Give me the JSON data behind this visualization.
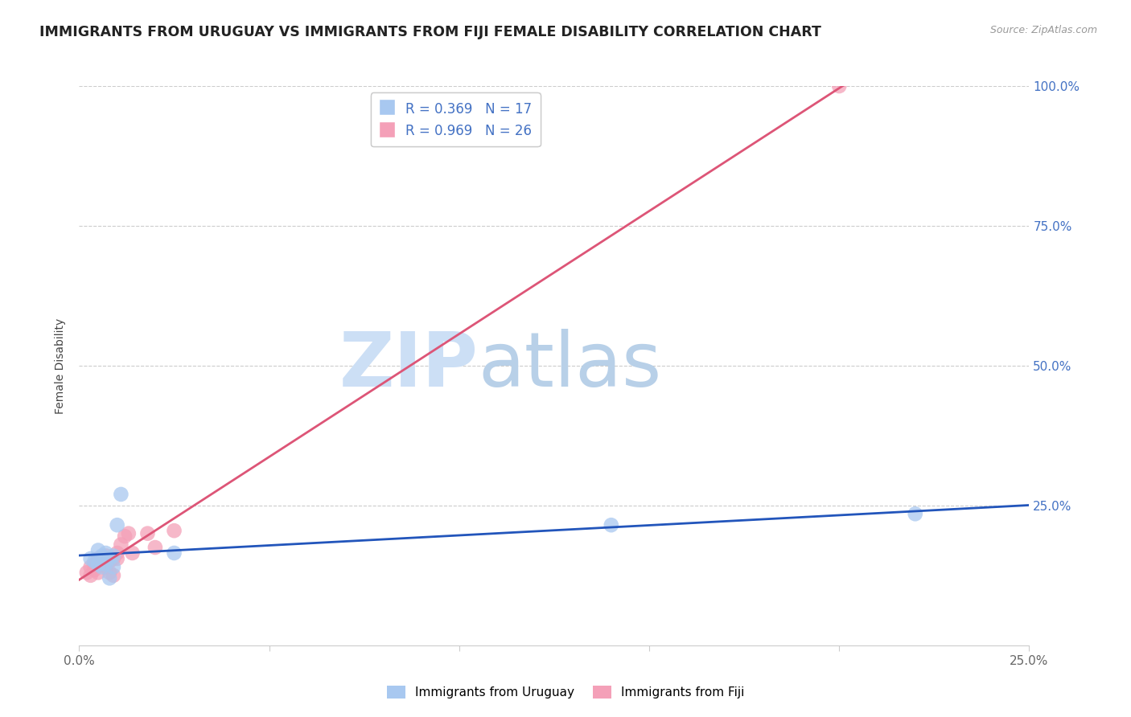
{
  "title": "IMMIGRANTS FROM URUGUAY VS IMMIGRANTS FROM FIJI FEMALE DISABILITY CORRELATION CHART",
  "source": "Source: ZipAtlas.com",
  "ylabel": "Female Disability",
  "xlim": [
    0,
    0.25
  ],
  "ylim": [
    0,
    1.0
  ],
  "uruguay_R": 0.369,
  "uruguay_N": 17,
  "fiji_R": 0.969,
  "fiji_N": 26,
  "uruguay_color": "#a8c8f0",
  "fiji_color": "#f4a0b8",
  "uruguay_line_color": "#2255bb",
  "fiji_line_color": "#dd5577",
  "watermark_zip": "ZIP",
  "watermark_atlas": "atlas",
  "uruguay_x": [
    0.003,
    0.004,
    0.005,
    0.005,
    0.006,
    0.006,
    0.007,
    0.007,
    0.008,
    0.008,
    0.009,
    0.009,
    0.01,
    0.011,
    0.025,
    0.14,
    0.22
  ],
  "uruguay_y": [
    0.155,
    0.15,
    0.145,
    0.17,
    0.14,
    0.16,
    0.145,
    0.165,
    0.12,
    0.155,
    0.14,
    0.16,
    0.215,
    0.27,
    0.165,
    0.215,
    0.235
  ],
  "fiji_x": [
    0.002,
    0.003,
    0.003,
    0.004,
    0.004,
    0.005,
    0.005,
    0.005,
    0.006,
    0.006,
    0.007,
    0.007,
    0.008,
    0.008,
    0.009,
    0.009,
    0.01,
    0.01,
    0.011,
    0.012,
    0.013,
    0.014,
    0.018,
    0.02,
    0.025,
    0.2
  ],
  "fiji_y": [
    0.13,
    0.14,
    0.125,
    0.135,
    0.145,
    0.15,
    0.13,
    0.155,
    0.145,
    0.155,
    0.14,
    0.16,
    0.15,
    0.13,
    0.155,
    0.125,
    0.165,
    0.155,
    0.18,
    0.195,
    0.2,
    0.165,
    0.2,
    0.175,
    0.205,
    1.0
  ],
  "grid_color": "#cccccc",
  "tick_label_color_x": "#666666",
  "tick_label_color_y": "#4472c4",
  "title_color": "#222222",
  "source_color": "#999999",
  "legend_top_label1": "R = 0.369   N = 17",
  "legend_top_label2": "R = 0.969   N = 26",
  "legend_bottom_label1": "Immigrants from Uruguay",
  "legend_bottom_label2": "Immigrants from Fiji"
}
